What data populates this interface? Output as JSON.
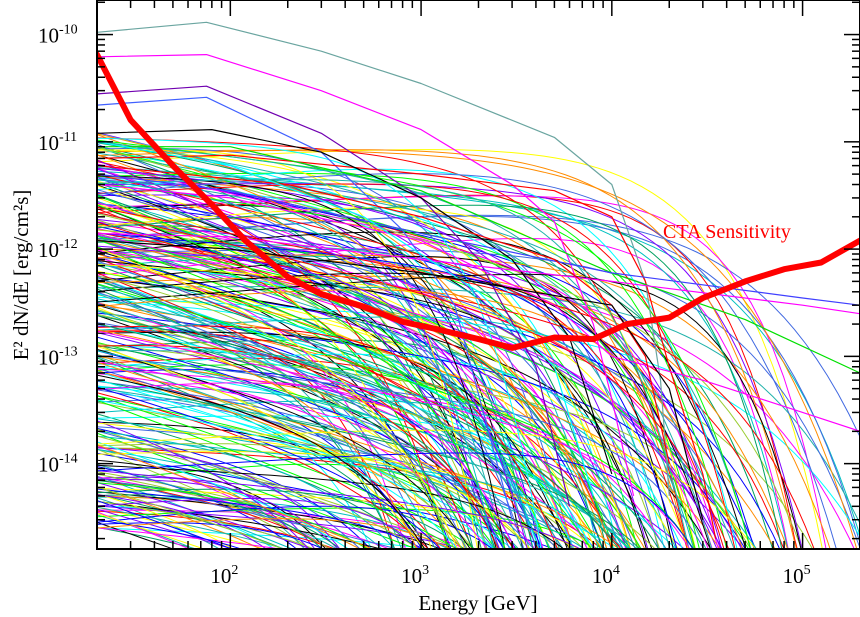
{
  "chart_data": {
    "type": "line",
    "xlabel": "Energy [GeV]",
    "ylabel": "E² dN/dE [erg/cm²s]",
    "xscale": "log",
    "yscale": "log",
    "xlim": [
      20,
      200000
    ],
    "ylim": [
      1.6e-15,
      2.1e-10
    ],
    "grid": false,
    "x_ticks": [
      {
        "value": 100,
        "base": "10",
        "exp": "2"
      },
      {
        "value": 1000,
        "base": "10",
        "exp": "3"
      },
      {
        "value": 10000,
        "base": "10",
        "exp": "4"
      },
      {
        "value": 100000,
        "base": "10",
        "exp": "5"
      }
    ],
    "y_ticks": [
      {
        "value": 1e-14,
        "base": "10",
        "exp": "-14"
      },
      {
        "value": 1e-13,
        "base": "10",
        "exp": "-13"
      },
      {
        "value": 1e-12,
        "base": "10",
        "exp": "-12"
      },
      {
        "value": 1e-11,
        "base": "10",
        "exp": "-11"
      },
      {
        "value": 1e-10,
        "base": "10",
        "exp": "-10"
      }
    ],
    "sensitivity": {
      "label": "CTA Sensitivity",
      "color": "#ff0000",
      "x": [
        20,
        30,
        50,
        80,
        120,
        200,
        300,
        500,
        800,
        1200,
        2000,
        3000,
        5000,
        8000,
        12000,
        20000,
        30000,
        50000,
        80000,
        125000,
        200000
      ],
      "y": [
        6.5e-11,
        1.6e-11,
        6e-12,
        2.6e-12,
        1.2e-12,
        5.5e-13,
        3.8e-13,
        2.9e-13,
        2.1e-13,
        1.8e-13,
        1.45e-13,
        1.2e-13,
        1.5e-13,
        1.45e-13,
        2e-13,
        2.3e-13,
        3.5e-13,
        5e-13,
        6.5e-13,
        7.5e-13,
        1.2e-12
      ]
    },
    "series": [
      {
        "color": "#6aa5a0",
        "x": [
          20,
          75,
          300,
          1000,
          5000,
          10000,
          15000,
          18000,
          20000
        ],
        "y": [
          1.05e-10,
          1.3e-10,
          7e-11,
          3.5e-11,
          1.1e-11,
          4e-12,
          5e-13,
          6e-14,
          5e-15
        ]
      },
      {
        "color": "#ff00ff",
        "x": [
          20,
          75,
          300,
          1000,
          3000,
          5000,
          8000,
          10000,
          13000
        ],
        "y": [
          6.2e-11,
          6.5e-11,
          3e-11,
          1.3e-11,
          4e-12,
          1.8e-12,
          2e-13,
          4e-14,
          5e-15
        ]
      },
      {
        "color": "#7000b0",
        "x": [
          20,
          75,
          300,
          1000,
          2000,
          4000,
          6000
        ],
        "y": [
          2.8e-11,
          3.3e-11,
          1.2e-11,
          3e-12,
          8e-13,
          8e-14,
          4e-15
        ]
      },
      {
        "color": "#4060ff",
        "x": [
          20,
          75,
          300,
          800,
          1500,
          3000
        ],
        "y": [
          2.2e-11,
          2.6e-11,
          8e-12,
          1.5e-12,
          3e-13,
          3e-15
        ]
      },
      {
        "color": "#ff0000",
        "x": [
          20,
          100,
          1000,
          5000,
          10000,
          15000,
          20000,
          30000,
          35000
        ],
        "y": [
          7e-12,
          7.5e-12,
          5e-12,
          3.5e-12,
          2e-12,
          5e-13,
          8e-14,
          8e-15,
          2e-15
        ]
      },
      {
        "color": "#000000",
        "x": [
          20,
          80,
          300,
          1000,
          3000,
          6000,
          10000
        ],
        "y": [
          1.2e-11,
          1.3e-11,
          8e-12,
          3e-12,
          8e-13,
          1.5e-13,
          8e-15
        ]
      },
      {
        "color": "#00e000",
        "x": [
          20,
          100,
          1000,
          10000,
          50000,
          200000
        ],
        "y": [
          9e-12,
          9e-12,
          3.5e-12,
          6e-13,
          2.2e-13,
          7e-14
        ]
      },
      {
        "color": "#4040ff",
        "x": [
          20,
          100,
          1000,
          10000,
          100000,
          200000
        ],
        "y": [
          5e-12,
          3.5e-12,
          1.4e-12,
          6e-13,
          3.5e-13,
          3e-13
        ]
      },
      {
        "color": "#ff00ff",
        "x": [
          20,
          100,
          1000,
          10000,
          100000,
          200000
        ],
        "y": [
          1.4e-12,
          1.3e-12,
          8e-13,
          5e-13,
          3e-13,
          2.5e-13
        ]
      },
      {
        "color": "#ff00ff",
        "x": [
          20,
          100,
          1000,
          5000,
          10000,
          30000,
          100000,
          200000
        ],
        "y": [
          4e-12,
          3e-12,
          1.2e-12,
          3e-13,
          1e-13,
          6e-14,
          3e-14,
          2e-14
        ]
      },
      {
        "color": "#ff0000",
        "x": [
          20,
          200,
          1000,
          5000,
          10000,
          15000,
          20000
        ],
        "y": [
          6e-12,
          4e-12,
          2e-12,
          8e-13,
          3e-13,
          1e-13,
          1e-14
        ]
      },
      {
        "color": "#00ffff",
        "x": [
          20,
          100,
          500,
          2000,
          5000,
          8000
        ],
        "y": [
          1e-11,
          6e-12,
          2e-12,
          4e-13,
          8e-14,
          5e-15
        ]
      },
      {
        "color": "#000000",
        "x": [
          20,
          100,
          1000,
          10000,
          20000,
          30000
        ],
        "y": [
          1.2e-12,
          1e-12,
          6e-13,
          3e-13,
          5e-14,
          3e-15
        ]
      }
    ]
  }
}
